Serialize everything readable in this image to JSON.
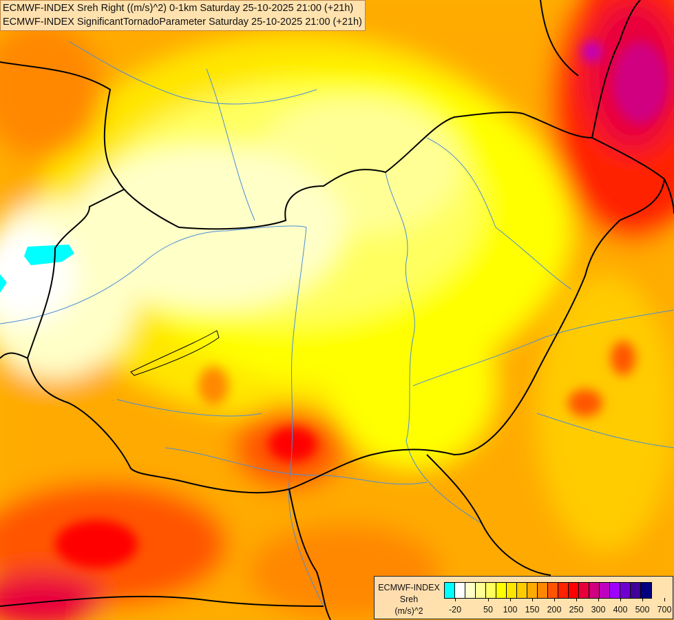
{
  "title": {
    "line1": "ECMWF-INDEX Sreh Right ((m/s)^2) 0-1km Saturday 25-10-2025 21:00 (+21h)",
    "line2": "ECMWF-INDEX SignificantTornadoParameter Saturday 25-10-2025 21:00 (+21h)"
  },
  "legend": {
    "model": "ECMWF-INDEX",
    "variable": "Sreh",
    "unit": "(m/s)^2",
    "colors": [
      "#00ffff",
      "#ffffff",
      "#ffffc8",
      "#ffff96",
      "#ffff60",
      "#ffff00",
      "#ffe600",
      "#ffcc00",
      "#ffaa00",
      "#ff8800",
      "#ff5500",
      "#ff2200",
      "#ff0000",
      "#e8003c",
      "#d00080",
      "#c000c0",
      "#a000ff",
      "#7000d0",
      "#40009a",
      "#000080"
    ],
    "tick_labels": [
      "-20",
      "50",
      "100",
      "150",
      "200",
      "250",
      "300",
      "400",
      "500",
      "700"
    ]
  },
  "map": {
    "region": "Hungary and surroundings",
    "field_colors": {
      "low": "#ffffc8",
      "mid": "#ffff00",
      "high": "#ff8800",
      "very_high": "#ff0000",
      "extreme": "#d00080"
    },
    "border_color": "#000000",
    "river_color": "#4a8cd8"
  }
}
